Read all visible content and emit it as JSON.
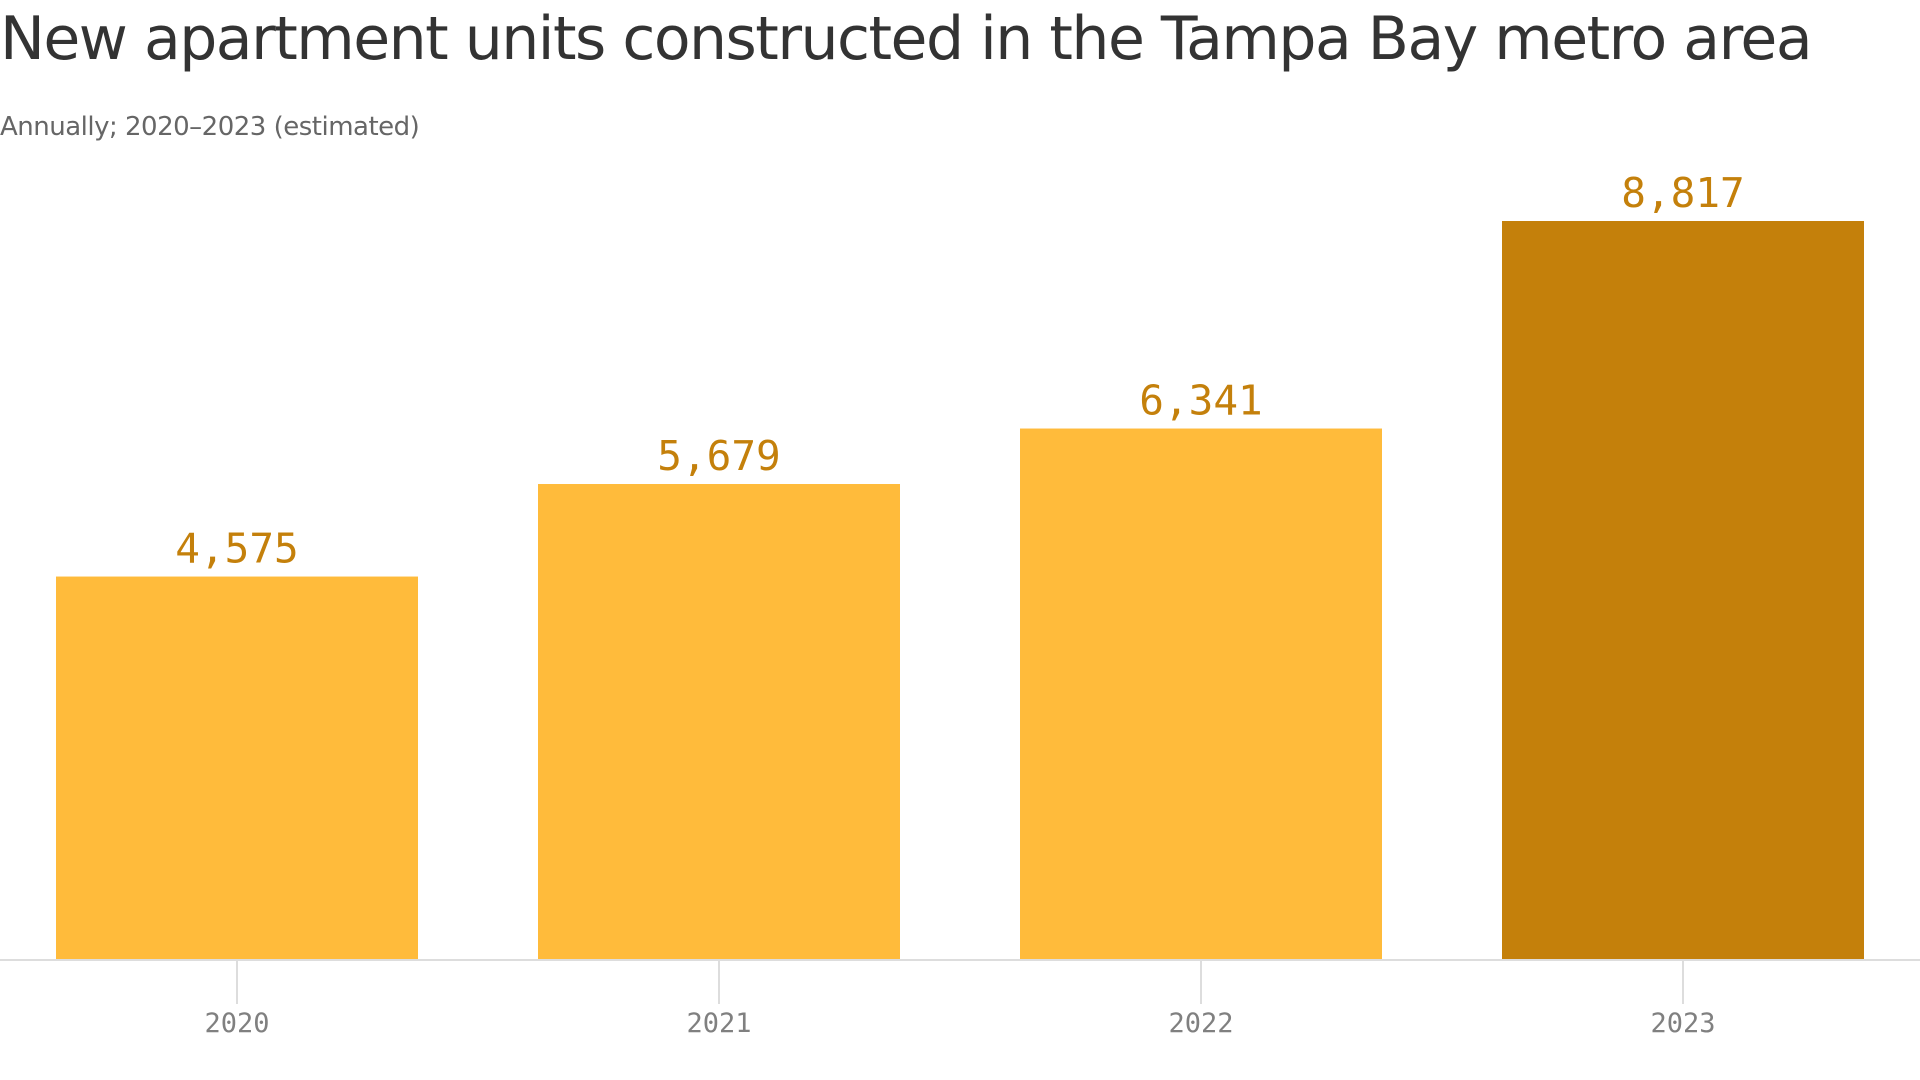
{
  "chart_data": {
    "type": "bar",
    "title": "New apartment units constructed in the Tampa Bay metro area",
    "subtitle": "Annually; 2020–2023 (estimated)",
    "categories": [
      "2020",
      "2021",
      "2022",
      "2023"
    ],
    "values": [
      4575,
      5679,
      6341,
      8817
    ],
    "value_labels": [
      "4,575",
      "5,679",
      "6,341",
      "8,817"
    ],
    "ylim": [
      0,
      8817
    ],
    "grid": false,
    "legend": "none",
    "colors": {
      "bar": "#FFBB3B",
      "bar_highlight": "#C4800B",
      "value_label": "#C4800B",
      "axis": "#DDDDDD",
      "tick_label": "#808080"
    },
    "highlight_index": 3
  }
}
